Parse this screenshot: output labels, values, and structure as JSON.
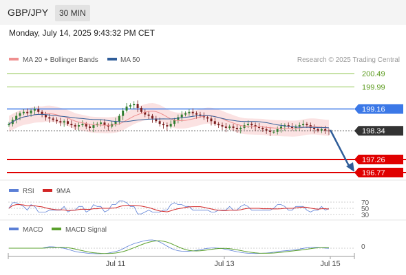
{
  "header": {
    "symbol": "GBP/JPY",
    "timeframe": "30 MIN"
  },
  "datetime": "Monday, July 14, 2025 9:43:32 PM CET",
  "legend": {
    "ma20": "MA 20 + Bollinger Bands",
    "ma50": "MA 50",
    "credit": "Research © 2025 Trading Central"
  },
  "colors": {
    "pivot": "#3b78e7",
    "support": "#e00000",
    "resistance": "#8fc64f",
    "current": "#333333",
    "ma20": "#ef8f8f",
    "ma50": "#2f5d99",
    "bull": "#2f7d2f",
    "bear": "#7a1e1e",
    "band": "#f9d6d6",
    "rsi": "#5b7fd6",
    "rsi_ma": "#d22424",
    "macd": "#5b7fd6",
    "macd_signal": "#5aa02c",
    "arrow": "#2f5d99"
  },
  "rsi_panel": {
    "label": "RSI",
    "ma_label": "9MA",
    "levels": [
      "70",
      "50",
      "30"
    ]
  },
  "macd_panel": {
    "label": "MACD",
    "signal_label": "MACD Signal",
    "zero": "0"
  },
  "chart_data": {
    "type": "candlestick",
    "symbol": "GBP/JPY",
    "timeframe": "30 MIN",
    "x_ticks": [
      "Jul 11",
      "Jul 13",
      "Jul 15"
    ],
    "y_range": [
      196.7,
      200.55
    ],
    "levels": [
      {
        "label": "200.49",
        "value": 200.49,
        "kind": "resistance"
      },
      {
        "label": "199.99",
        "value": 199.99,
        "kind": "resistance"
      },
      {
        "label": "199.16",
        "value": 199.16,
        "kind": "pivot"
      },
      {
        "label": "198.34",
        "value": 198.34,
        "kind": "current"
      },
      {
        "label": "197.26",
        "value": 197.26,
        "kind": "support"
      },
      {
        "label": "196.77",
        "value": 196.77,
        "kind": "support"
      }
    ],
    "close_series": [
      198.6,
      198.75,
      198.9,
      199.0,
      199.05,
      199.0,
      199.1,
      199.15,
      199.05,
      198.95,
      198.85,
      198.8,
      198.75,
      198.7,
      198.65,
      198.7,
      198.6,
      198.55,
      198.5,
      198.55,
      198.6,
      198.5,
      198.45,
      198.55,
      198.6,
      198.65,
      198.55,
      198.5,
      198.6,
      198.7,
      198.9,
      199.1,
      199.25,
      199.3,
      199.35,
      199.2,
      199.05,
      198.95,
      198.9,
      198.8,
      198.7,
      198.6,
      198.55,
      198.5,
      198.6,
      198.75,
      198.85,
      198.95,
      199.0,
      199.05,
      199.0,
      198.95,
      198.9,
      198.85,
      198.8,
      198.7,
      198.6,
      198.55,
      198.5,
      198.45,
      198.5,
      198.45,
      198.4,
      198.45,
      198.55,
      198.6,
      198.55,
      198.5,
      198.45,
      198.4,
      198.35,
      198.3,
      198.3,
      198.4,
      198.5,
      198.55,
      198.5,
      198.45,
      198.5,
      198.55,
      198.6,
      198.55,
      198.45,
      198.4,
      198.35,
      198.4,
      198.35,
      198.34
    ]
  }
}
